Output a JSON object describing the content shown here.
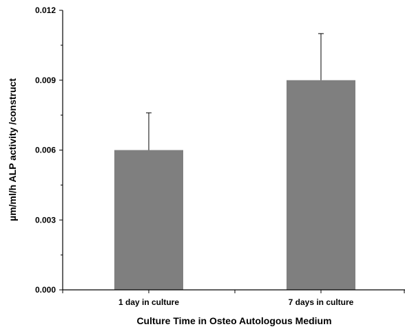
{
  "chart_data": {
    "type": "bar",
    "title": "",
    "xlabel": "Culture Time in Osteo Autologous Medium",
    "ylabel": "µm/ml/h ALP activity /construct",
    "categories": [
      "1 day in culture",
      "7 days in culture"
    ],
    "values": [
      0.006,
      0.009
    ],
    "error_upper": [
      0.0076,
      0.011
    ],
    "ylim": [
      0,
      0.012
    ],
    "yticks": [
      "0.000",
      "0.003",
      "0.006",
      "0.009",
      "0.012"
    ],
    "bar_color": "#7f7f7f",
    "grid": false,
    "legend": "none"
  }
}
